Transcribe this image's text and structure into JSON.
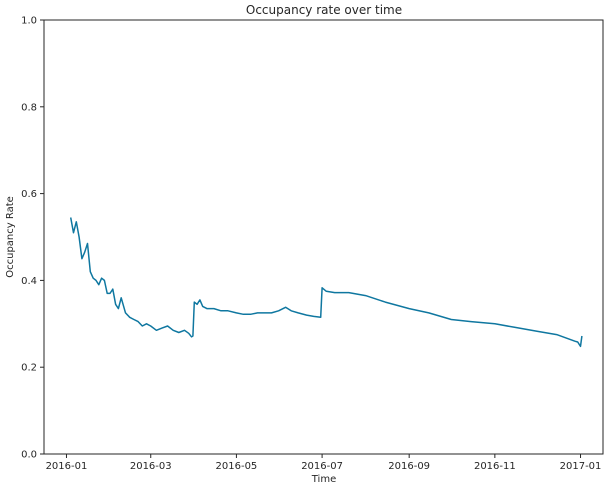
{
  "chart_data": {
    "type": "line",
    "title": "Occupancy rate over time",
    "xlabel": "Time",
    "ylabel": "Occupancy Rate",
    "ylim": [
      0,
      1
    ],
    "xlim": [
      "2015-12-16",
      "2017-01-17"
    ],
    "x_ticks": [
      "2016-01",
      "2016-03",
      "2016-05",
      "2016-07",
      "2016-09",
      "2016-11",
      "2017-01"
    ],
    "y_ticks": [
      "0.0",
      "0.2",
      "0.4",
      "0.6",
      "0.8",
      "1.0"
    ],
    "grid": false,
    "line_color": "#0f77a0",
    "series": [
      {
        "x": [
          "2016-01-04",
          "2016-01-06",
          "2016-01-08",
          "2016-01-10",
          "2016-01-12",
          "2016-01-14",
          "2016-01-16",
          "2016-01-18",
          "2016-01-20",
          "2016-01-22",
          "2016-01-24",
          "2016-01-26",
          "2016-01-28",
          "2016-01-30",
          "2016-02-01",
          "2016-02-03",
          "2016-02-05",
          "2016-02-07",
          "2016-02-09",
          "2016-02-12",
          "2016-02-15",
          "2016-02-18",
          "2016-02-21",
          "2016-02-24",
          "2016-02-27",
          "2016-03-01",
          "2016-03-05",
          "2016-03-09",
          "2016-03-13",
          "2016-03-17",
          "2016-03-21",
          "2016-03-25",
          "2016-03-28",
          "2016-03-30",
          "2016-03-31",
          "2016-04-01",
          "2016-04-03",
          "2016-04-05",
          "2016-04-07",
          "2016-04-10",
          "2016-04-15",
          "2016-04-20",
          "2016-04-25",
          "2016-05-01",
          "2016-05-06",
          "2016-05-11",
          "2016-05-16",
          "2016-05-21",
          "2016-05-26",
          "2016-05-31",
          "2016-06-05",
          "2016-06-09",
          "2016-06-14",
          "2016-06-20",
          "2016-06-25",
          "2016-06-30",
          "2016-07-01",
          "2016-07-04",
          "2016-07-10",
          "2016-07-20",
          "2016-08-01",
          "2016-08-15",
          "2016-09-01",
          "2016-09-15",
          "2016-10-01",
          "2016-10-15",
          "2016-11-01",
          "2016-11-15",
          "2016-12-01",
          "2016-12-15",
          "2016-12-28",
          "2016-12-30",
          "2017-01-01",
          "2017-01-02"
        ],
        "y": [
          0.545,
          0.51,
          0.535,
          0.5,
          0.45,
          0.465,
          0.485,
          0.42,
          0.405,
          0.4,
          0.39,
          0.405,
          0.4,
          0.37,
          0.37,
          0.38,
          0.345,
          0.335,
          0.36,
          0.325,
          0.315,
          0.31,
          0.305,
          0.295,
          0.3,
          0.295,
          0.285,
          0.29,
          0.295,
          0.285,
          0.28,
          0.285,
          0.278,
          0.27,
          0.272,
          0.35,
          0.345,
          0.355,
          0.34,
          0.335,
          0.335,
          0.33,
          0.33,
          0.325,
          0.322,
          0.322,
          0.325,
          0.325,
          0.325,
          0.33,
          0.338,
          0.33,
          0.325,
          0.32,
          0.317,
          0.315,
          0.383,
          0.375,
          0.372,
          0.372,
          0.365,
          0.35,
          0.335,
          0.325,
          0.31,
          0.305,
          0.3,
          0.292,
          0.283,
          0.275,
          0.26,
          0.258,
          0.248,
          0.272
        ]
      }
    ]
  }
}
